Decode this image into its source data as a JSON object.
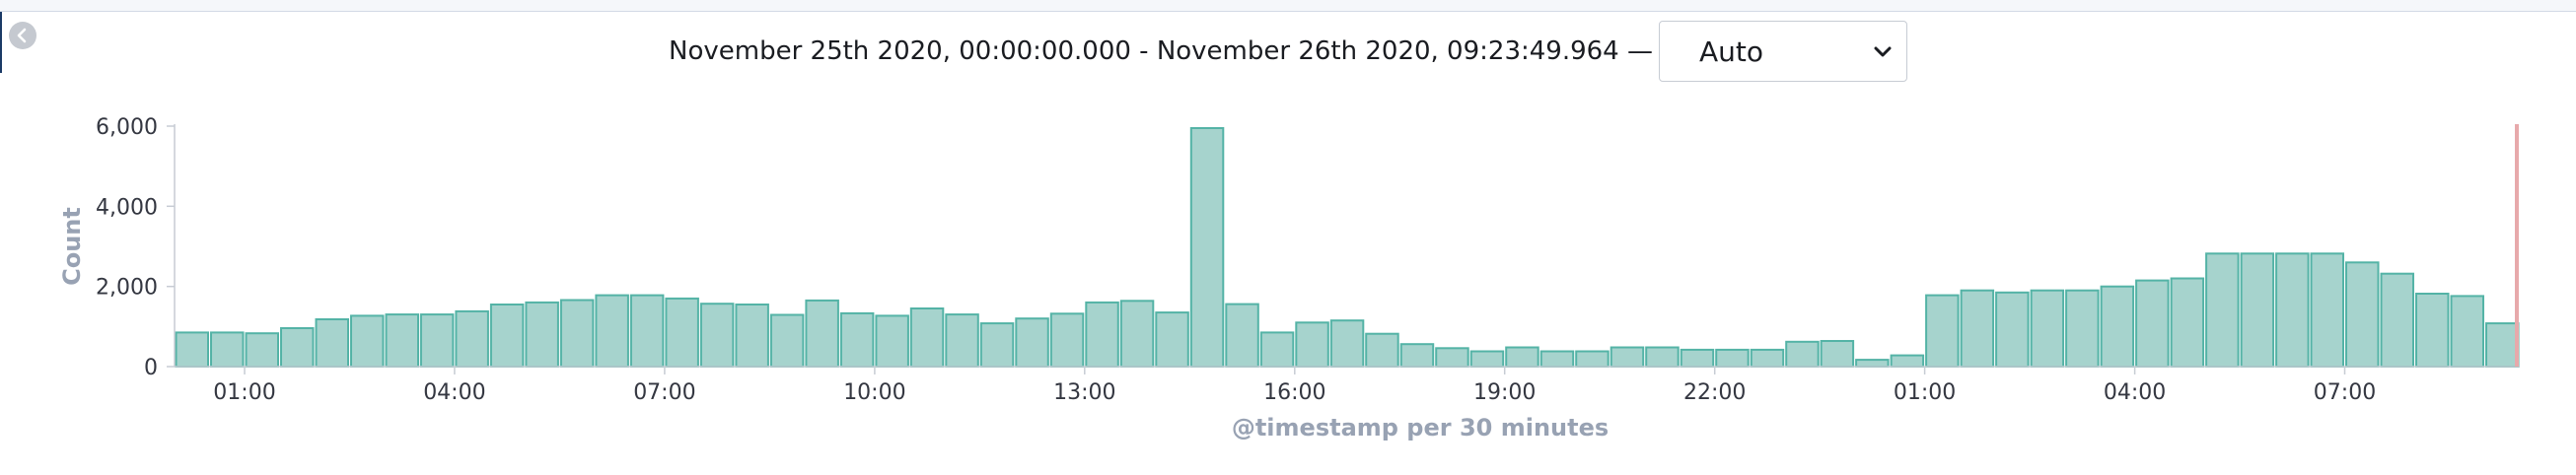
{
  "header": {
    "time_range": "November 25th 2020, 00:00:00.000 - November 26th 2020, 09:23:49.964 —",
    "interval_selected": "Auto"
  },
  "icons": {
    "collapse": "chevron-left-icon",
    "dropdown": "chevron-down-icon"
  },
  "colors": {
    "bar_fill": "#a6d3cd",
    "bar_stroke": "#54b3a6",
    "now_line": "#e7a9ab"
  },
  "chart_data": {
    "type": "bar",
    "xlabel": "@timestamp per 30 minutes",
    "ylabel": "Count",
    "ylim": [
      0,
      6000
    ],
    "yticks": [
      "0",
      "2,000",
      "4,000",
      "6,000"
    ],
    "xticks": [
      {
        "label": "01:00",
        "index": 2
      },
      {
        "label": "04:00",
        "index": 8
      },
      {
        "label": "07:00",
        "index": 14
      },
      {
        "label": "10:00",
        "index": 20
      },
      {
        "label": "13:00",
        "index": 26
      },
      {
        "label": "16:00",
        "index": 32
      },
      {
        "label": "19:00",
        "index": 38
      },
      {
        "label": "22:00",
        "index": 44
      },
      {
        "label": "01:00",
        "index": 50
      },
      {
        "label": "04:00",
        "index": 56
      },
      {
        "label": "07:00",
        "index": 62
      }
    ],
    "values": [
      850,
      850,
      830,
      960,
      1180,
      1270,
      1300,
      1300,
      1380,
      1550,
      1600,
      1660,
      1780,
      1780,
      1700,
      1570,
      1550,
      1290,
      1650,
      1330,
      1270,
      1450,
      1300,
      1080,
      1200,
      1320,
      1600,
      1640,
      1350,
      5950,
      1560,
      850,
      1100,
      1150,
      820,
      560,
      460,
      380,
      480,
      380,
      380,
      480,
      480,
      420,
      420,
      420,
      620,
      640,
      170,
      280,
      1780,
      1900,
      1850,
      1900,
      1900,
      2000,
      2150,
      2200,
      2820,
      2820,
      2820,
      2820,
      2600,
      2320,
      1820,
      1760,
      1080
    ],
    "grid": false,
    "legend": "none"
  }
}
